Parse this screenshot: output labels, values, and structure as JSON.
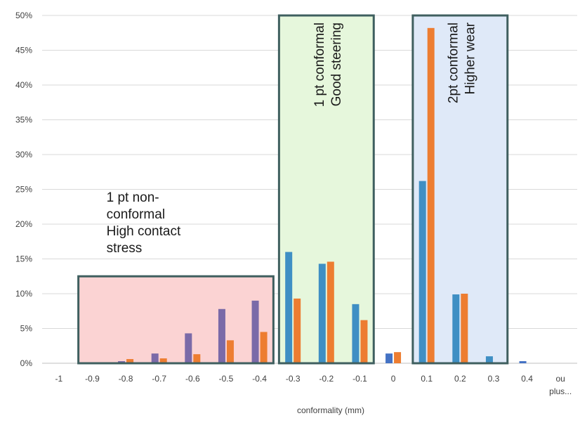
{
  "chart_data": {
    "type": "bar",
    "xlabel": "conformality (mm)",
    "ylabel": "",
    "ylim": [
      0,
      0.5
    ],
    "yticks": [
      "0%",
      "5%",
      "10%",
      "15%",
      "20%",
      "25%",
      "30%",
      "35%",
      "40%",
      "45%",
      "50%"
    ],
    "grid": true,
    "categories": [
      "-1",
      "-0.9",
      "-0.8",
      "-0.7",
      "-0.6",
      "-0.5",
      "-0.4",
      "-0.3",
      "-0.2",
      "-0.1",
      "0",
      "0.1",
      "0.2",
      "0.3",
      "0.4",
      "ou\nplus..."
    ],
    "series": [
      {
        "color": "#4472c4",
        "values": [
          0,
          0,
          0.003,
          0.014,
          0.043,
          0.078,
          0.09,
          0.16,
          0.143,
          0.085,
          0.014,
          0.262,
          0.099,
          0.01,
          0.003,
          0
        ]
      },
      {
        "color": "#ed7d31",
        "values": [
          0,
          0,
          0.006,
          0.007,
          0.013,
          0.033,
          0.045,
          0.093,
          0.146,
          0.062,
          0.016,
          0.482,
          0.1,
          0,
          0,
          0
        ]
      }
    ],
    "regions": [
      {
        "text": [
          "1 pt non-",
          "conformal",
          "High contact",
          "stress"
        ],
        "from": "-0.9",
        "to": "-0.4",
        "top": 0.125,
        "fill": "#fbd3d3",
        "tint": "#7a6aa8",
        "orientation": "horizontal"
      },
      {
        "text": [
          "1 pt conformal",
          "Good steering"
        ],
        "from": "-0.3",
        "to": "-0.1",
        "top": 0.5,
        "fill": "#e6f7dc",
        "tint": "#3f8fc4",
        "orientation": "vertical"
      },
      {
        "text": [
          "2pt conformal",
          "Higher wear"
        ],
        "from": "0.1",
        "to": "0.3",
        "top": 0.5,
        "fill": "#dfe9f8",
        "tint": "#3f8fc4",
        "orientation": "vertical"
      }
    ],
    "colors": {
      "grid": "#d9d9d9",
      "box_border": "#3f5f5f",
      "tick_text": "#404040"
    }
  }
}
